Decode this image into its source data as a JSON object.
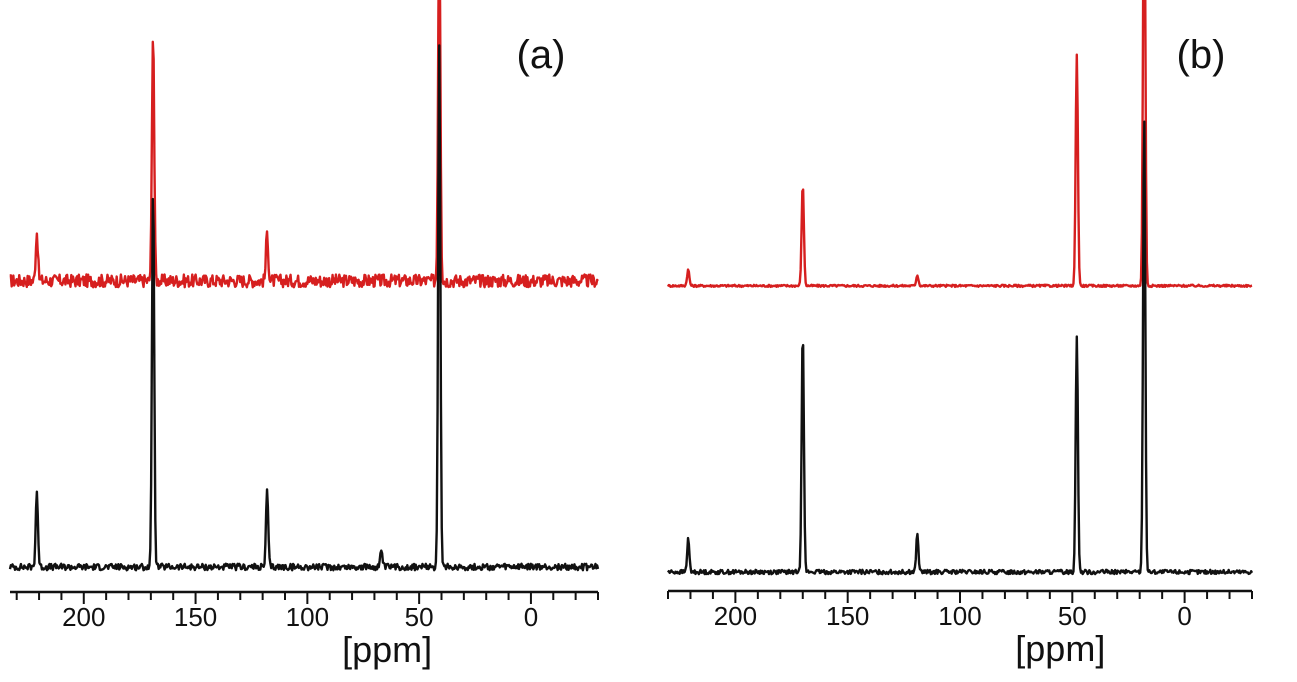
{
  "chart_data": [
    {
      "type": "line",
      "panel_label": "(a)",
      "xlabel": "[ppm]",
      "xlim": [
        233,
        -30
      ],
      "x_reversed": true,
      "ticks": [
        200,
        150,
        100,
        50,
        0
      ],
      "tick_labels": [
        "200",
        "150",
        "100",
        "50",
        "0"
      ],
      "minor_tick_step": 10,
      "series": [
        {
          "color": "#d61f1f",
          "offset": 0.53,
          "noise": 0.012,
          "peaks": [
            [
              221,
              0.09
            ],
            [
              169,
              0.47
            ],
            [
              118,
              0.09
            ],
            [
              41,
              0.68
            ]
          ]
        },
        {
          "color": "#111111",
          "offset": 0.0,
          "noise": 0.006,
          "peaks": [
            [
              221,
              0.14
            ],
            [
              169,
              0.71
            ],
            [
              118,
              0.14
            ],
            [
              67,
              0.03
            ],
            [
              41,
              0.96
            ]
          ]
        }
      ]
    },
    {
      "type": "line",
      "panel_label": "(b)",
      "xlabel": "[ppm]",
      "xlim": [
        230,
        -30
      ],
      "x_reversed": true,
      "ticks": [
        200,
        150,
        100,
        50,
        0
      ],
      "tick_labels": [
        "200",
        "150",
        "100",
        "50",
        "0"
      ],
      "minor_tick_step": 10,
      "series": [
        {
          "color": "#d61f1f",
          "offset": 0.53,
          "noise": 0.002,
          "peaks": [
            [
              221,
              0.03
            ],
            [
              170,
              0.19
            ],
            [
              119,
              0.02
            ],
            [
              48,
              0.43
            ],
            [
              18,
              0.85
            ]
          ]
        },
        {
          "color": "#111111",
          "offset": 0.0,
          "noise": 0.004,
          "peaks": [
            [
              221,
              0.06
            ],
            [
              170,
              0.45
            ],
            [
              119,
              0.07
            ],
            [
              48,
              0.44
            ],
            [
              18,
              0.85
            ]
          ]
        }
      ]
    }
  ]
}
